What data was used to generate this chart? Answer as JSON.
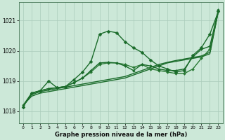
{
  "background_color": "#cce8d8",
  "grid_color": "#aaccbb",
  "xlabel": "Graphe pression niveau de la mer (hPa)",
  "xlim": [
    -0.5,
    23.5
  ],
  "ylim": [
    1017.6,
    1021.6
  ],
  "yticks": [
    1018,
    1019,
    1020,
    1021
  ],
  "xticks": [
    0,
    1,
    2,
    3,
    4,
    5,
    6,
    7,
    8,
    9,
    10,
    11,
    12,
    13,
    14,
    15,
    16,
    17,
    18,
    19,
    20,
    21,
    22,
    23
  ],
  "series": [
    {
      "x": [
        0,
        1,
        2,
        3,
        4,
        5,
        6,
        7,
        8,
        9,
        10,
        11,
        12,
        13,
        14,
        15,
        16,
        17,
        18,
        19,
        20,
        21,
        22,
        23
      ],
      "y": [
        1018.2,
        1018.5,
        1018.6,
        1018.65,
        1018.7,
        1018.75,
        1018.8,
        1018.85,
        1018.9,
        1018.95,
        1019.0,
        1019.05,
        1019.1,
        1019.2,
        1019.3,
        1019.4,
        1019.5,
        1019.6,
        1019.65,
        1019.7,
        1019.75,
        1019.8,
        1019.9,
        1021.3
      ],
      "color": "#1a6b2a",
      "linewidth": 1.0,
      "marker": null,
      "markersize": 0
    },
    {
      "x": [
        0,
        1,
        2,
        3,
        4,
        5,
        6,
        7,
        8,
        9,
        10,
        11,
        12,
        13,
        14,
        15,
        16,
        17,
        18,
        19,
        20,
        21,
        22,
        23
      ],
      "y": [
        1018.2,
        1018.55,
        1018.65,
        1018.7,
        1018.75,
        1018.8,
        1018.85,
        1018.9,
        1018.95,
        1019.0,
        1019.05,
        1019.1,
        1019.15,
        1019.25,
        1019.35,
        1019.45,
        1019.55,
        1019.62,
        1019.68,
        1019.73,
        1019.78,
        1019.83,
        1019.95,
        1021.3
      ],
      "color": "#1a6b2a",
      "linewidth": 1.0,
      "marker": null,
      "markersize": 0
    },
    {
      "x": [
        0,
        1,
        2,
        3,
        4,
        5,
        6,
        7,
        8,
        9,
        10,
        11,
        12,
        13,
        14,
        15,
        16,
        17,
        18,
        19,
        20,
        21,
        22,
        23
      ],
      "y": [
        1018.2,
        1018.6,
        1018.68,
        1018.75,
        1018.78,
        1018.82,
        1018.95,
        1019.1,
        1019.3,
        1019.55,
        1019.6,
        1019.6,
        1019.55,
        1019.45,
        1019.55,
        1019.4,
        1019.35,
        1019.3,
        1019.25,
        1019.25,
        1019.4,
        1019.75,
        1020.05,
        1021.3
      ],
      "color": "#2a7a35",
      "linewidth": 1.0,
      "marker": "D",
      "markersize": 2.0
    },
    {
      "x": [
        0,
        1,
        2,
        3,
        4,
        5,
        6,
        7,
        8,
        9,
        10,
        11,
        12,
        13,
        14,
        15,
        16,
        17,
        18,
        19,
        20,
        21,
        22,
        23
      ],
      "y": [
        1018.15,
        1018.6,
        1018.68,
        1018.75,
        1018.78,
        1018.82,
        1018.95,
        1019.1,
        1019.35,
        1019.6,
        1019.62,
        1019.6,
        1019.5,
        1019.35,
        1019.55,
        1019.5,
        1019.4,
        1019.35,
        1019.35,
        1019.4,
        1019.8,
        1020.05,
        1020.15,
        1021.35
      ],
      "color": "#1a6b2a",
      "linewidth": 1.0,
      "marker": "D",
      "markersize": 2.0
    },
    {
      "x": [
        0,
        1,
        2,
        3,
        4,
        5,
        6,
        7,
        8,
        9,
        10,
        11,
        12,
        13,
        14,
        15,
        16,
        17,
        18,
        19,
        20,
        21,
        22,
        23
      ],
      "y": [
        1018.15,
        1018.6,
        1018.68,
        1019.0,
        1018.78,
        1018.82,
        1019.05,
        1019.3,
        1019.65,
        1020.55,
        1020.65,
        1020.6,
        1020.3,
        1020.1,
        1019.95,
        1019.7,
        1019.5,
        1019.4,
        1019.3,
        1019.35,
        1019.85,
        1020.1,
        1020.55,
        1021.3
      ],
      "color": "#1a6b2a",
      "linewidth": 1.0,
      "marker": "D",
      "markersize": 2.5
    }
  ]
}
